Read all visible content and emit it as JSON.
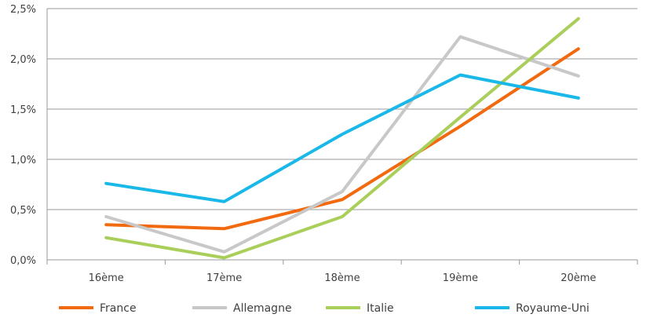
{
  "chart_data": {
    "type": "line",
    "categories": [
      "16ème",
      "17ème",
      "18ème",
      "19ème",
      "20ème"
    ],
    "y_ticks": [
      "0,0%",
      "0,5%",
      "1,0%",
      "1,5%",
      "2,0%",
      "2,5%"
    ],
    "ylim": [
      0,
      2.5
    ],
    "grid": true,
    "legend_position": "bottom",
    "series": [
      {
        "name": "France",
        "color": "#f26a10",
        "values": [
          0.35,
          0.31,
          0.6,
          1.33,
          2.1
        ]
      },
      {
        "name": "Allemagne",
        "color": "#c8c8c8",
        "values": [
          0.43,
          0.08,
          0.68,
          2.22,
          1.83
        ]
      },
      {
        "name": "Italie",
        "color": "#a9cf5a",
        "values": [
          0.22,
          0.02,
          0.43,
          1.42,
          2.4
        ]
      },
      {
        "name": "Royaume-Uni",
        "color": "#1ab8e8",
        "values": [
          0.76,
          0.58,
          1.25,
          1.84,
          1.61
        ]
      }
    ]
  }
}
